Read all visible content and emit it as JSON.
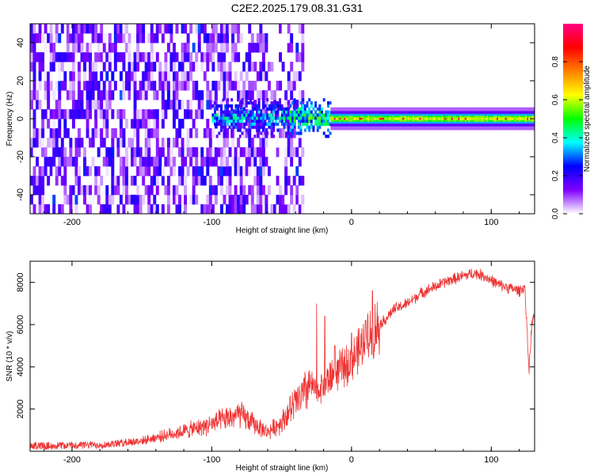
{
  "title": "C2E2.2025.179.08.31.G31",
  "chart_data": [
    {
      "type": "heatmap",
      "title": "C2E2.2025.179.08.31.G31",
      "xlabel": "Height of straight line (km)",
      "ylabel": "Frequency (Hz)",
      "xlim": [
        -230,
        131
      ],
      "ylim": [
        -50,
        50
      ],
      "x_ticks": [
        "-200",
        "-100",
        "0",
        "100"
      ],
      "y_ticks": [
        "-40",
        "-20",
        "0",
        "20",
        "40"
      ],
      "colorbar": {
        "label": "Normalized spectral amplitude",
        "range": [
          0,
          1
        ],
        "ticks": [
          "0.0",
          "0.2",
          "0.4",
          "0.6",
          "0.8"
        ],
        "colormap": [
          "#ffffff",
          "#8000ff",
          "#0000ff",
          "#00ffff",
          "#00ff00",
          "#ffff00",
          "#ff8000",
          "#ff0000",
          "#ff0080"
        ]
      },
      "features": {
        "noise_region_x": [
          -230,
          -35
        ],
        "transition_region_x": [
          -100,
          -15
        ],
        "stable_signal_x": [
          -15,
          131
        ],
        "signal_frequency": 0,
        "drift_track": [
          [
            -225,
            -40
          ],
          [
            -215,
            -22
          ],
          [
            -200,
            0
          ],
          [
            -190,
            14
          ],
          [
            -180,
            22
          ],
          [
            -165,
            30
          ]
        ]
      },
      "grid": false
    },
    {
      "type": "line",
      "xlabel": "Height of straight line (km)",
      "ylabel": "SNR (10 * v/v)",
      "xlim": [
        -230,
        131
      ],
      "ylim": [
        0,
        9000
      ],
      "x_ticks": [
        "-200",
        "-100",
        "0",
        "100"
      ],
      "y_ticks": [
        "2000",
        "4000",
        "6000",
        "8000"
      ],
      "color": "#ee3333",
      "envelope_x": [
        -230,
        -200,
        -175,
        -150,
        -130,
        -110,
        -95,
        -80,
        -70,
        -60,
        -50,
        -40,
        -35,
        -30,
        -25,
        -20,
        -15,
        -10,
        -5,
        0,
        5,
        10,
        15,
        20,
        25,
        30,
        40,
        50,
        60,
        70,
        80,
        88,
        95,
        105,
        115,
        120,
        124,
        127,
        129,
        131
      ],
      "envelope_y": [
        250,
        280,
        320,
        500,
        800,
        1100,
        1400,
        1750,
        1300,
        900,
        1400,
        2300,
        2600,
        3200,
        2800,
        3200,
        3500,
        3800,
        4000,
        4300,
        4700,
        5200,
        5700,
        6000,
        6300,
        6700,
        7000,
        7500,
        7800,
        8100,
        8300,
        8450,
        8300,
        7900,
        7700,
        7600,
        7800,
        3800,
        6000,
        6500
      ],
      "spikes": [
        [
          -25,
          7000
        ],
        [
          -19,
          6400
        ],
        [
          -12,
          5000
        ],
        [
          0,
          5600
        ],
        [
          10,
          6200
        ],
        [
          15,
          7600
        ]
      ],
      "grid": false
    }
  ]
}
